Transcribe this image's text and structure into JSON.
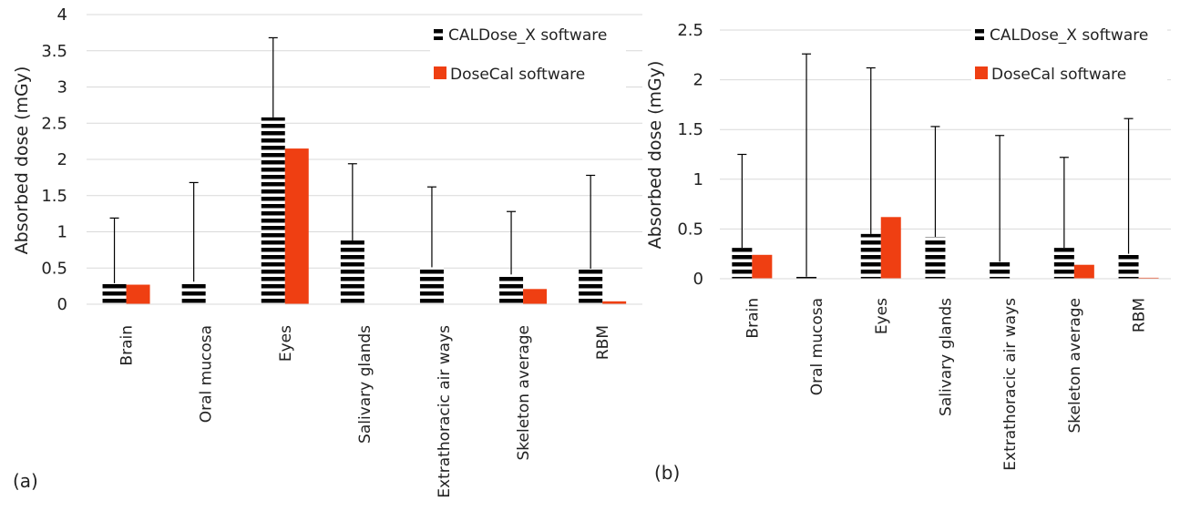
{
  "colors": {
    "dosecal": "#ef3f12",
    "caldose_stripe": "#000000",
    "grid": "#d9d9d9",
    "error_bar": "#000000"
  },
  "chart_data": [
    {
      "type": "bar",
      "panel_label": "(a)",
      "ylabel": "Absorbed dose (mGy)",
      "ylim": [
        0,
        4
      ],
      "yticks": [
        0,
        0.5,
        1,
        1.5,
        2,
        2.5,
        3,
        3.5,
        4
      ],
      "ytick_labels": [
        "0",
        "0.5",
        "1",
        "1.5",
        "2",
        "2.5",
        "3",
        "3.5",
        "4"
      ],
      "grid": true,
      "legend_position": "top-right",
      "categories": [
        "Brain",
        "Oral mucosa",
        "Eyes",
        "Salivary glands",
        "Extrathoracic air ways",
        "Skeleton average",
        "RBM"
      ],
      "series": [
        {
          "name": "CALDose_X software",
          "pattern": "horizontal-stripes",
          "values": [
            0.29,
            0.31,
            2.58,
            0.88,
            0.51,
            0.41,
            0.49
          ],
          "error_upper": [
            1.19,
            1.68,
            3.68,
            1.94,
            1.62,
            1.28,
            1.78
          ]
        },
        {
          "name": "DoseCal software",
          "color": "#ef3f12",
          "values": [
            0.27,
            0.0,
            2.15,
            0.0,
            0.0,
            0.21,
            0.04
          ]
        }
      ]
    },
    {
      "type": "bar",
      "panel_label": "(b)",
      "ylabel": "Absorbed dose (mGy)",
      "ylim": [
        0,
        2.5
      ],
      "yticks": [
        0,
        0.5,
        1,
        1.5,
        2,
        2.5
      ],
      "ytick_labels": [
        "0",
        "0.5",
        "1",
        "1.5",
        "2",
        "2.5"
      ],
      "grid": true,
      "legend_position": "top-right",
      "categories": [
        "Brain",
        "Oral mucosa",
        "Eyes",
        "Salivary glands",
        "Extrathoracic air ways",
        "Skeleton average",
        "RBM"
      ],
      "series": [
        {
          "name": "CALDose_X software",
          "pattern": "horizontal-stripes",
          "values": [
            0.31,
            0.02,
            0.45,
            0.42,
            0.17,
            0.31,
            0.25
          ],
          "error_upper": [
            1.25,
            2.26,
            2.12,
            1.53,
            1.44,
            1.22,
            1.61
          ]
        },
        {
          "name": "DoseCal software",
          "color": "#ef3f12",
          "values": [
            0.24,
            0.0,
            0.62,
            0.0,
            0.0,
            0.14,
            0.01
          ]
        }
      ]
    }
  ]
}
